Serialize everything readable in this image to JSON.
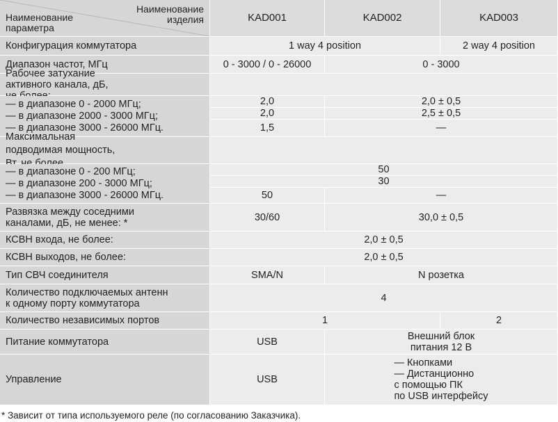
{
  "header": {
    "param_label": "Наименование параметра",
    "product_label": "Наименование изделия",
    "models": [
      "KAD001",
      "KAD002",
      "KAD003"
    ]
  },
  "config": {
    "label": "Конфигурация коммутатора",
    "kad001_002": "1 way 4 position",
    "kad003": "2 way 4 position"
  },
  "freq": {
    "label": "Диапазон частот, МГц",
    "kad001": "0 - 3000 / 0 - 26000",
    "kad002_003": "0 - 3000"
  },
  "attenuation": {
    "label": "Рабочее затухание активного канала, дБ, не более:",
    "ranges": [
      {
        "label": "— в диапазоне 0 - 2000 МГц;",
        "kad001": "2,0",
        "kad002_003": "2,0 ± 0,5"
      },
      {
        "label": "— в диапазоне 2000 - 3000 МГц;",
        "kad001": "2,0",
        "kad002_003": "2,5 ± 0,5"
      },
      {
        "label": "— в диапазоне 3000 - 26000 МГц.",
        "kad001": "1,5",
        "kad002_003": "—"
      }
    ]
  },
  "power_max": {
    "label": "Максимальная подводимая мощность, Вт, не более",
    "ranges": [
      {
        "label": "— в диапазоне 0 - 200 МГц;",
        "all": "50"
      },
      {
        "label": "— в диапазоне 200 - 3000 МГц;",
        "all": "30"
      },
      {
        "label": "— в диапазоне 3000 - 26000 МГц.",
        "kad001": "50",
        "kad002_003": "—"
      }
    ]
  },
  "isolation": {
    "label": "Развязка между соседними каналами, дБ, не менее: *",
    "kad001": "30/60",
    "kad002_003": "30,0 ± 0,5"
  },
  "vswr_in": {
    "label": "КСВН входа, не более:",
    "all": "2,0 ± 0,5"
  },
  "vswr_out": {
    "label": "КСВН выходов, не более:",
    "all": "2,0 ± 0,5"
  },
  "connector": {
    "label": "Тип СВЧ соединителя",
    "kad001": "SMA/N",
    "kad002_003": "N розетка"
  },
  "antennas": {
    "label": "Количество подключаемых антенн к одному порту коммутатора",
    "all": "4"
  },
  "ports": {
    "label": "Количество независимых портов",
    "kad001_002": "1",
    "kad003": "2"
  },
  "supply": {
    "label": "Питание коммутатора",
    "kad001": "USB",
    "kad002_003": "Внешний блок питания 12 В"
  },
  "control": {
    "label": "Управление",
    "kad001": "USB",
    "kad002_003": [
      "— Кнопками",
      "— Дистанционно",
      "с помощью ПК",
      "по USB интерфейсу"
    ]
  },
  "footnote": "* Зависит от типа используемого реле (по согласованию Заказчика)."
}
